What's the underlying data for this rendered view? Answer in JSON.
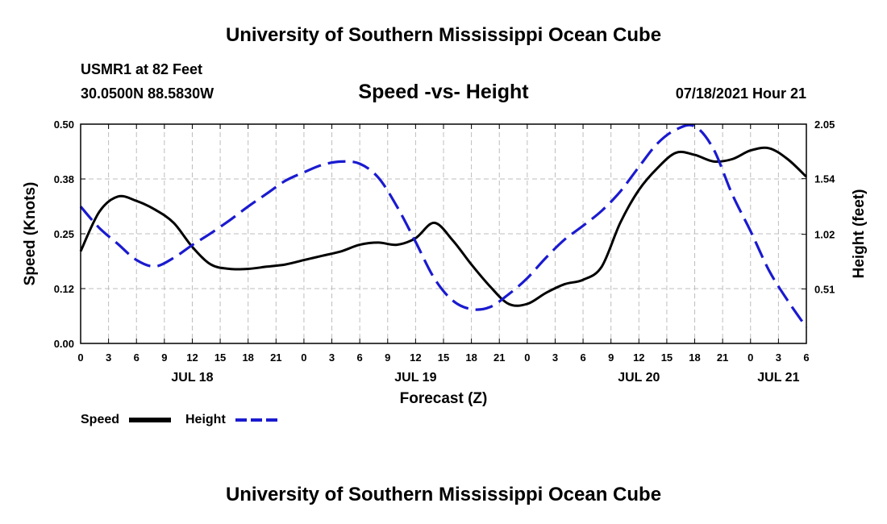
{
  "header": {
    "title_top": "University of Southern Mississippi Ocean Cube",
    "title_bottom": "University of Southern Mississippi Ocean Cube",
    "station": "USMR1 at 82 Feet",
    "coords": "30.0500N  88.5830W",
    "chart_title": "Speed -vs- Height",
    "timestamp": "07/18/2021 Hour 21"
  },
  "chart_data": {
    "type": "line",
    "title": "Speed -vs- Height",
    "xlabel": "Forecast (Z)",
    "ylabel_left": "Speed (Knots)",
    "ylabel_right": "Height (feet)",
    "x_unit": "hours from JUL 18 00Z",
    "xlim": [
      0,
      78
    ],
    "ylim_left": [
      0,
      0.5
    ],
    "ylim_right": [
      0,
      2.05
    ],
    "x_ticks": [
      0,
      3,
      6,
      9,
      12,
      15,
      18,
      21,
      24,
      27,
      30,
      33,
      36,
      39,
      42,
      45,
      48,
      51,
      54,
      57,
      60,
      63,
      66,
      69,
      72,
      75,
      78
    ],
    "x_tick_labels": [
      "0",
      "3",
      "6",
      "9",
      "12",
      "15",
      "18",
      "21",
      "0",
      "3",
      "6",
      "9",
      "12",
      "15",
      "18",
      "21",
      "0",
      "3",
      "6",
      "9",
      "12",
      "15",
      "18",
      "21",
      "0",
      "3",
      "6"
    ],
    "day_labels": [
      {
        "x": 12,
        "label": "JUL 18"
      },
      {
        "x": 36,
        "label": "JUL 19"
      },
      {
        "x": 60,
        "label": "JUL 20"
      },
      {
        "x": 75,
        "label": "JUL 21"
      }
    ],
    "y_left_ticks": [
      0.0,
      0.125,
      0.25,
      0.375,
      0.5
    ],
    "y_left_tick_labels": [
      "0.00",
      "0.12",
      "0.25",
      "0.38",
      "0.50"
    ],
    "y_right_ticks": [
      0.51,
      1.02,
      1.54,
      2.05
    ],
    "y_right_tick_labels": [
      "0.51",
      "1.02",
      "1.54",
      "2.05"
    ],
    "grid": true,
    "legend_position": "bottom-left",
    "series": [
      {
        "name": "Speed",
        "axis": "left",
        "color": "#000000",
        "dash": "solid",
        "x": [
          0,
          2,
          4,
          6,
          8,
          10,
          12,
          14,
          16,
          18,
          20,
          22,
          24,
          26,
          28,
          30,
          32,
          34,
          36,
          38,
          40,
          42,
          44,
          46,
          48,
          50,
          52,
          54,
          56,
          58,
          60,
          62,
          64,
          66,
          68,
          70,
          72,
          74,
          76,
          78
        ],
        "y": [
          0.21,
          0.3,
          0.335,
          0.325,
          0.305,
          0.275,
          0.22,
          0.18,
          0.17,
          0.17,
          0.175,
          0.18,
          0.19,
          0.2,
          0.21,
          0.225,
          0.23,
          0.225,
          0.24,
          0.275,
          0.235,
          0.18,
          0.13,
          0.09,
          0.09,
          0.115,
          0.135,
          0.145,
          0.175,
          0.275,
          0.35,
          0.4,
          0.435,
          0.43,
          0.415,
          0.42,
          0.44,
          0.445,
          0.42,
          0.38
        ]
      },
      {
        "name": "Height",
        "axis": "right",
        "color": "#1a1ad0",
        "dash": "dashed",
        "x": [
          0,
          2,
          4,
          6,
          8,
          10,
          12,
          14,
          16,
          18,
          20,
          22,
          24,
          26,
          28,
          30,
          32,
          34,
          36,
          38,
          40,
          42,
          44,
          46,
          48,
          50,
          52,
          54,
          56,
          58,
          60,
          62,
          64,
          66,
          68,
          70,
          72,
          74,
          76,
          78
        ],
        "y": [
          1.28,
          1.08,
          0.93,
          0.78,
          0.72,
          0.8,
          0.92,
          1.03,
          1.15,
          1.28,
          1.4,
          1.52,
          1.6,
          1.67,
          1.7,
          1.68,
          1.55,
          1.28,
          0.95,
          0.61,
          0.4,
          0.32,
          0.34,
          0.46,
          0.61,
          0.8,
          0.97,
          1.1,
          1.24,
          1.42,
          1.65,
          1.87,
          2.0,
          2.03,
          1.82,
          1.4,
          1.05,
          0.68,
          0.4,
          0.15
        ]
      }
    ]
  }
}
